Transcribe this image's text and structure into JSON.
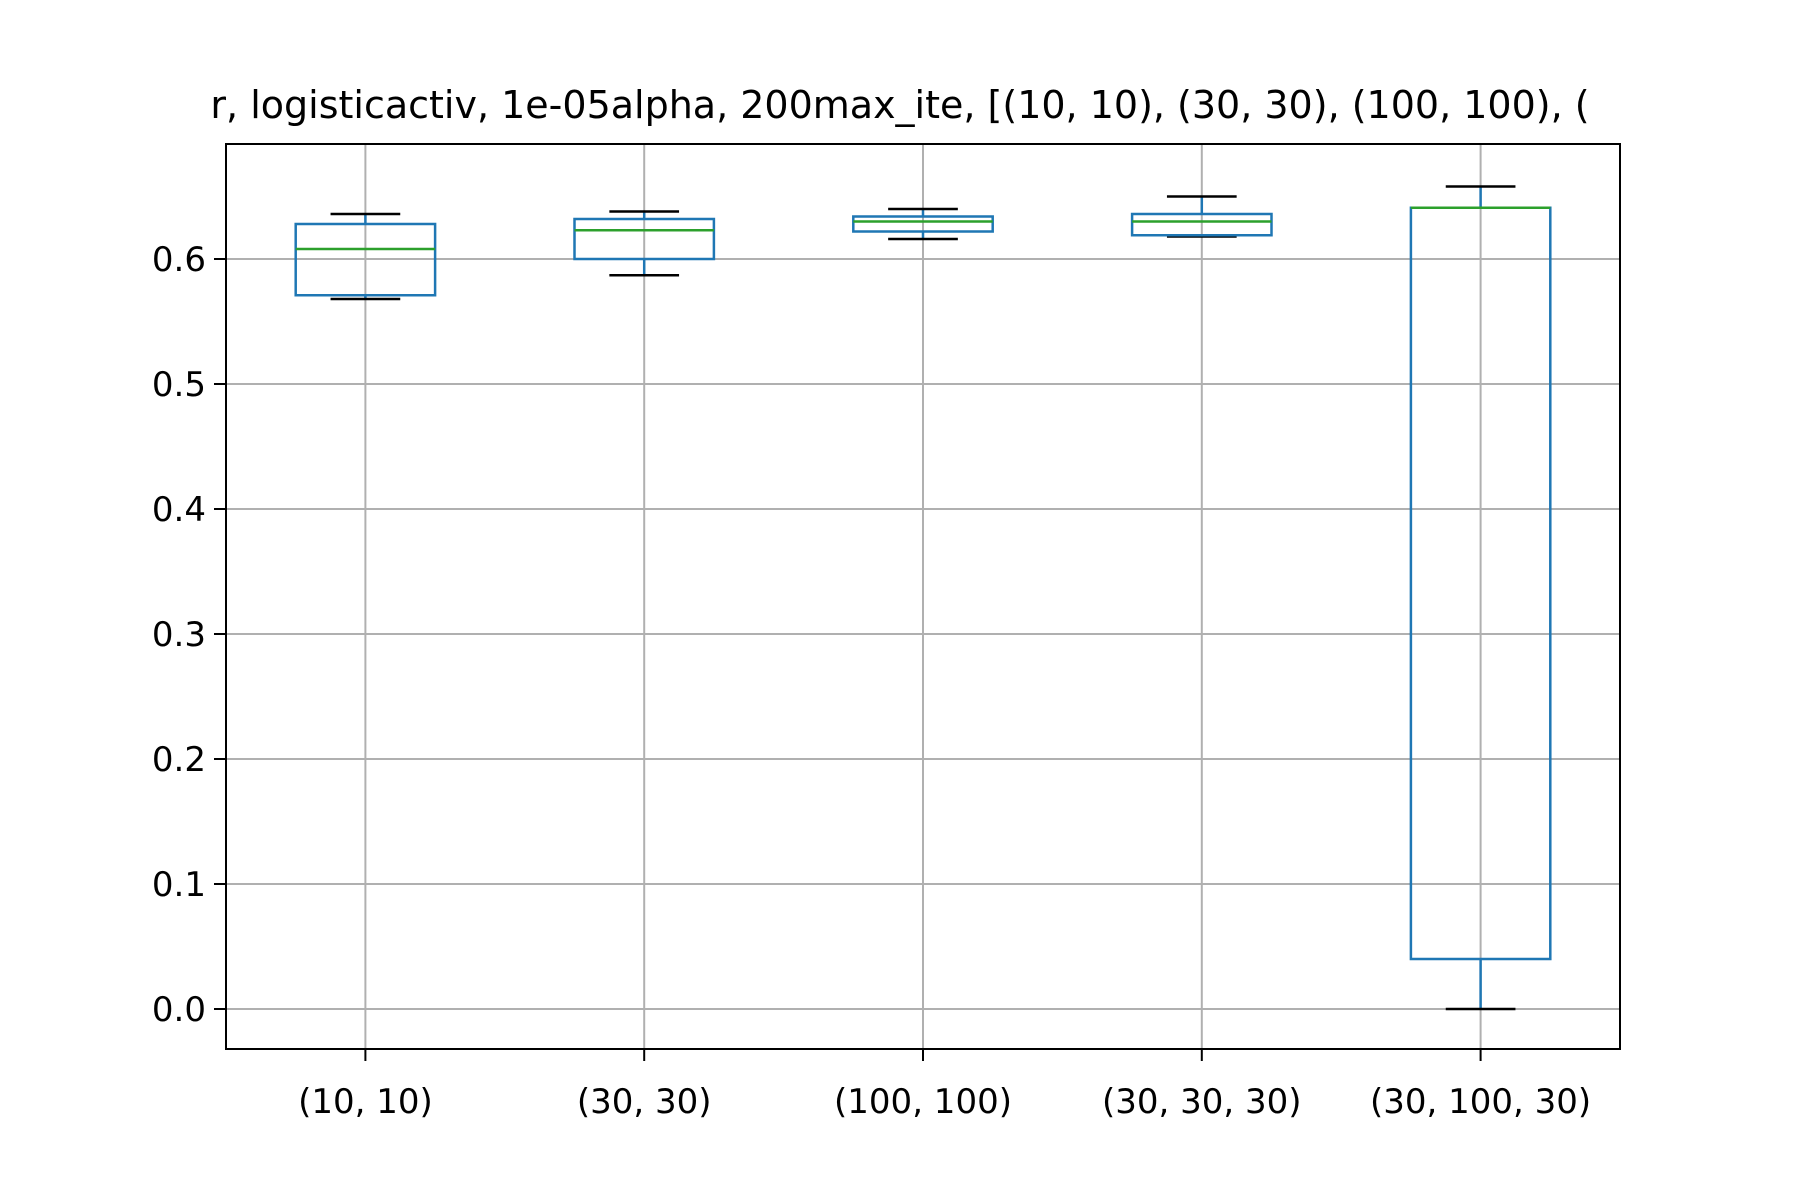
{
  "chart_data": {
    "type": "box",
    "title": "r, logisticactiv, 1e-05alpha, 200max_ite, [(10, 10), (30, 30), (100, 100), (",
    "xlabel": "",
    "ylabel": "",
    "ylim": [
      -0.032,
      0.692
    ],
    "grid": true,
    "yticks": [
      0.0,
      0.1,
      0.2,
      0.3,
      0.4,
      0.5,
      0.6
    ],
    "yticklabels": [
      "0.0",
      "0.1",
      "0.2",
      "0.3",
      "0.4",
      "0.5",
      "0.6"
    ],
    "categories": [
      "(10, 10)",
      "(30, 30)",
      "(100, 100)",
      "(30, 30, 30)",
      "(30, 100, 30)"
    ],
    "boxes": [
      {
        "label": "(10, 10)",
        "whisker_low": 0.568,
        "q1": 0.571,
        "median": 0.608,
        "q3": 0.628,
        "whisker_high": 0.636
      },
      {
        "label": "(30, 30)",
        "whisker_low": 0.587,
        "q1": 0.6,
        "median": 0.623,
        "q3": 0.632,
        "whisker_high": 0.638
      },
      {
        "label": "(100, 100)",
        "whisker_low": 0.616,
        "q1": 0.622,
        "median": 0.63,
        "q3": 0.634,
        "whisker_high": 0.64
      },
      {
        "label": "(30, 30, 30)",
        "whisker_low": 0.618,
        "q1": 0.619,
        "median": 0.63,
        "q3": 0.636,
        "whisker_high": 0.65
      },
      {
        "label": "(30, 100, 30)",
        "whisker_low": 0.0,
        "q1": 0.04,
        "median": 0.641,
        "q3": 0.641,
        "whisker_high": 0.658
      }
    ],
    "colors": {
      "box": "#1f77b4",
      "median": "#2ca02c",
      "whisker_cap": "#000000",
      "grid": "#b0b0b0",
      "axes": "#000000"
    }
  }
}
